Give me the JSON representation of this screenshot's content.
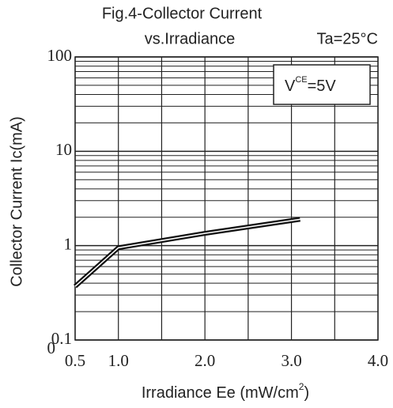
{
  "chart_data": {
    "type": "line",
    "title": "Fig.4-Collector Current",
    "subtitle": "vs.Irradiance",
    "condition": "Ta=25°C",
    "legend": {
      "v": "V",
      "sub": "CE",
      "rest": "=5V"
    },
    "x_label": {
      "text": "Irradiance Ee (mW/cm",
      "sup": "2",
      "end": ")"
    },
    "y_label": "Collector Current Ic(mA)",
    "origin_label": "0",
    "log_y": true,
    "grid": true,
    "xlim": [
      0.5,
      4.0
    ],
    "xticks": [
      0.5,
      {
        "value": 1,
        "label": "1.0"
      },
      {
        "value": 2,
        "label": "2.0"
      },
      {
        "value": 3,
        "label": "3.0"
      },
      {
        "value": 4,
        "label": "4.0"
      }
    ],
    "xgrid": [
      0.5,
      1,
      1.5,
      2,
      2.5,
      3,
      3.5,
      4
    ],
    "ylim": [
      0.1,
      100
    ],
    "yticks": [
      0.1,
      1,
      10,
      100
    ],
    "series": [
      {
        "color": "#111111",
        "x": [
          0.5,
          1.0,
          2.0,
          3.1
        ],
        "values": [
          0.37,
          0.95,
          1.35,
          1.9
        ]
      }
    ]
  }
}
